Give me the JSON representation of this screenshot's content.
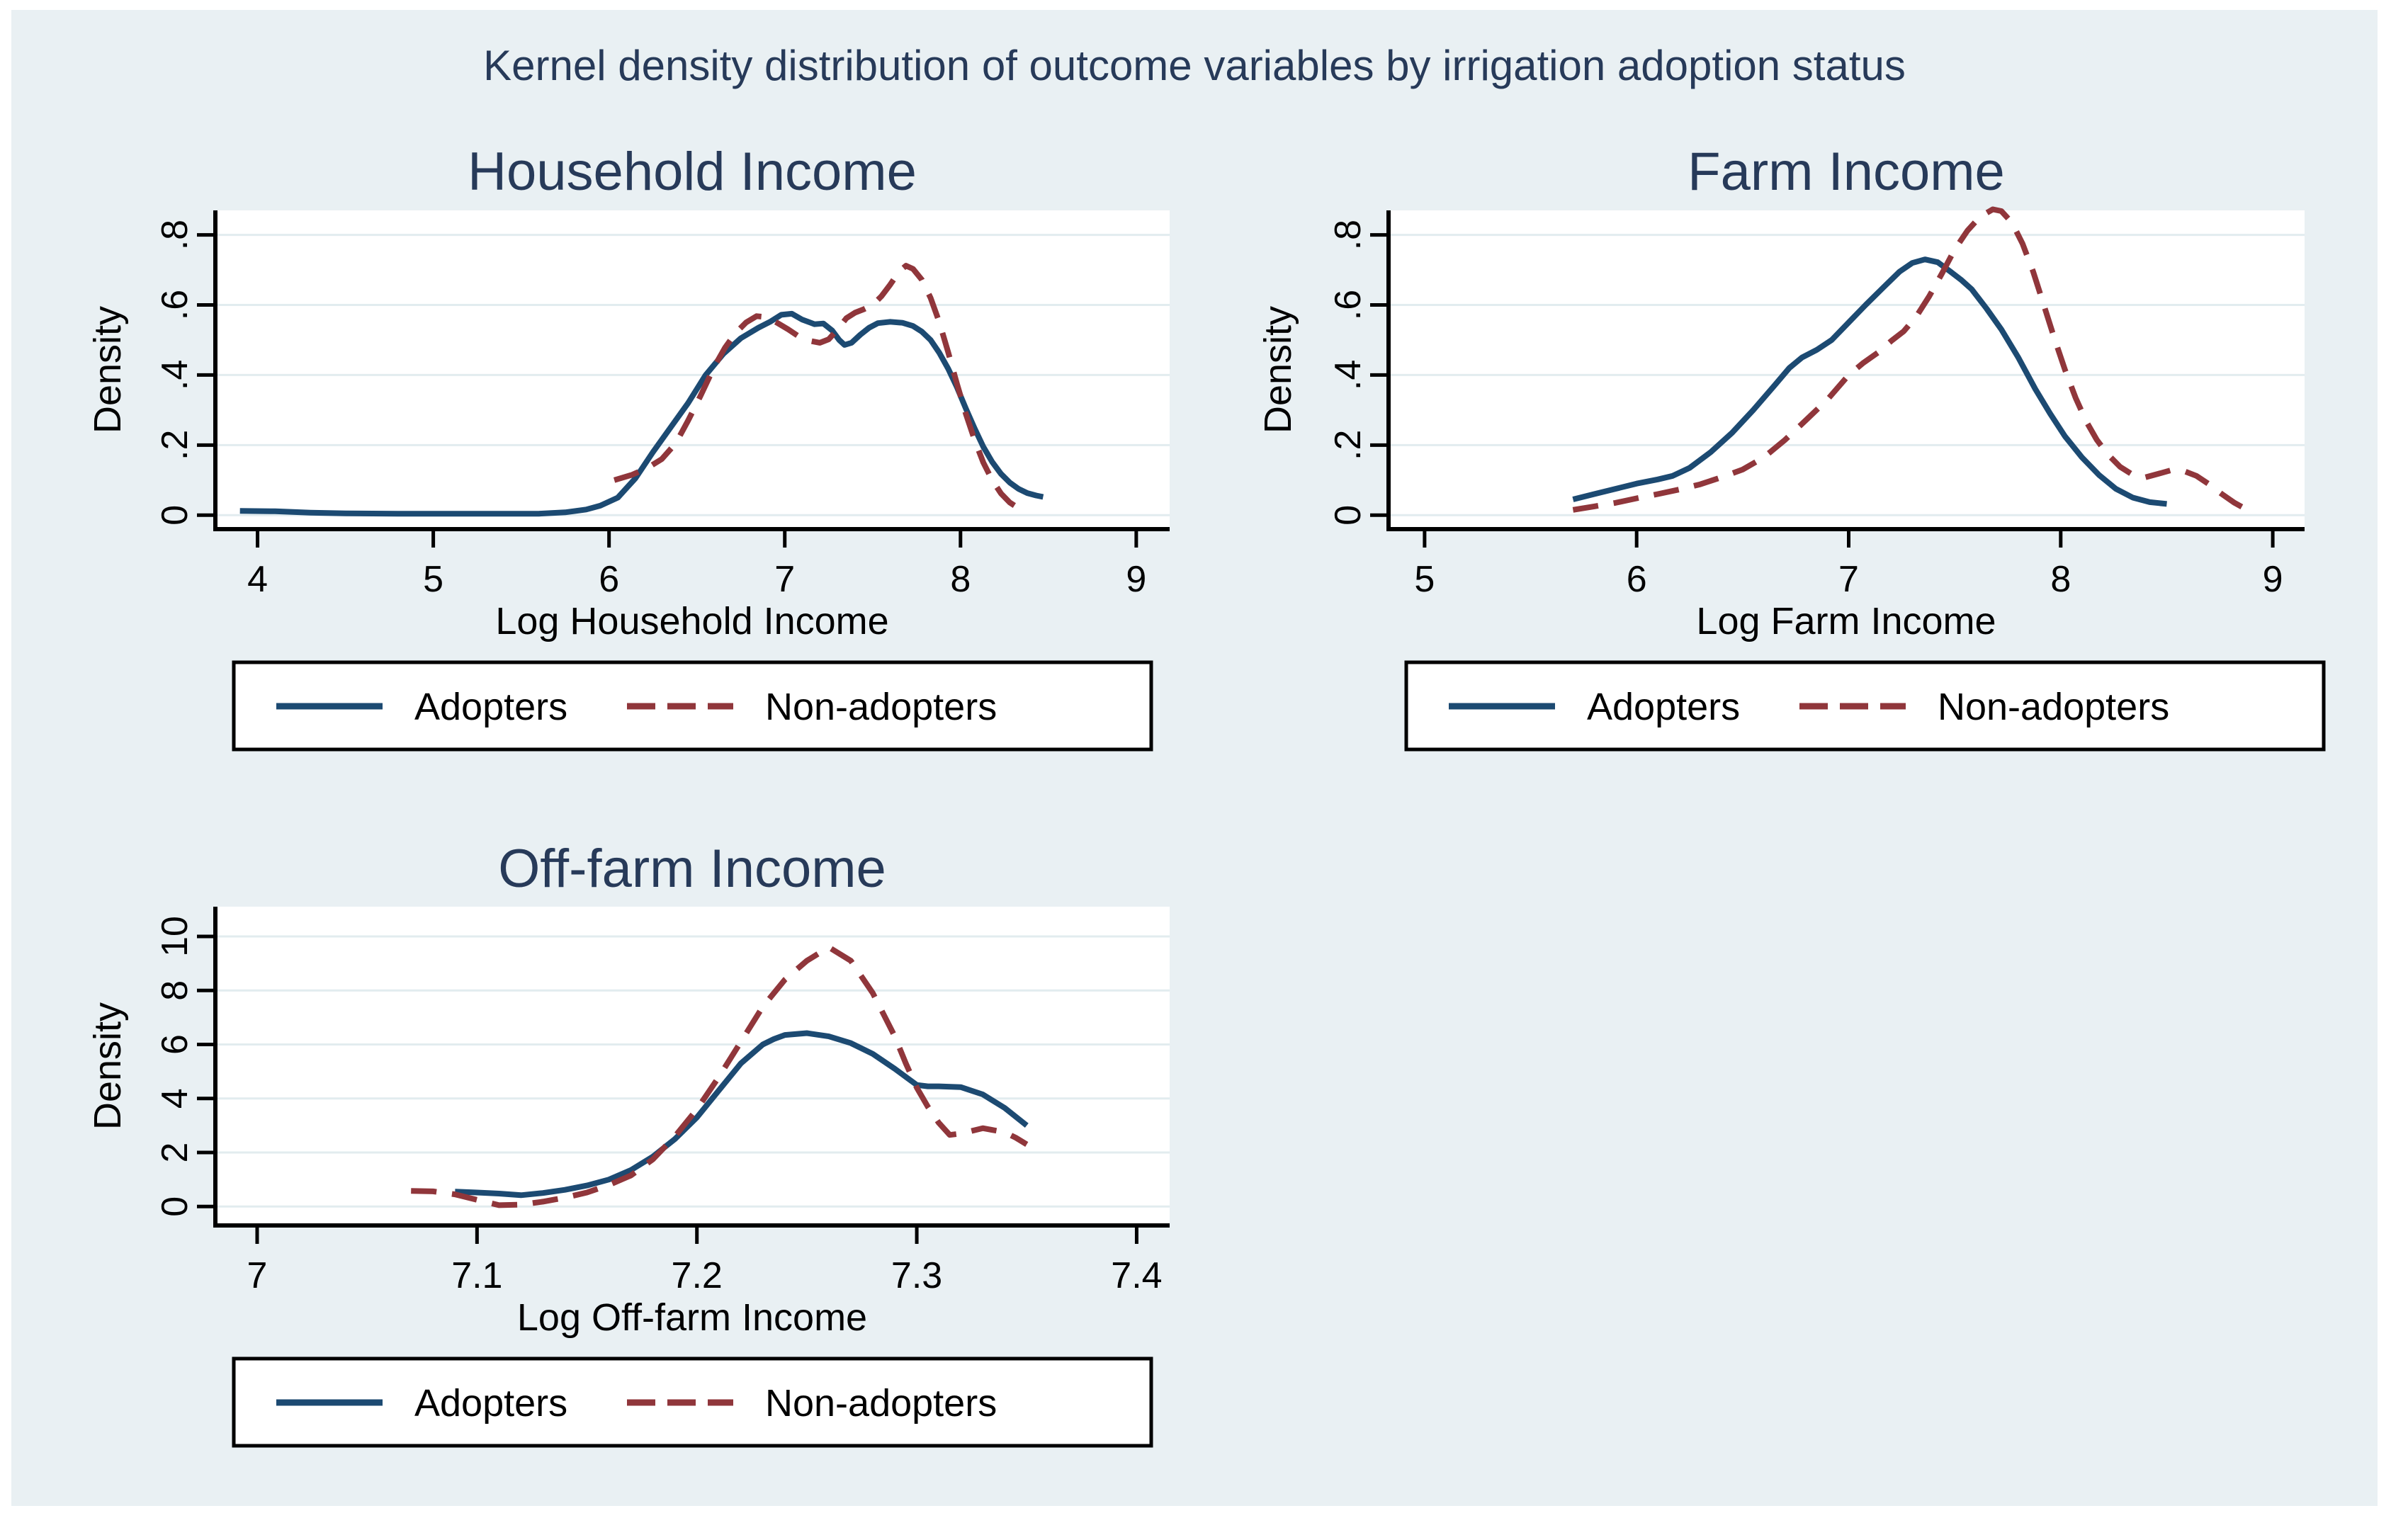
{
  "figure": {
    "title": "Kernel density distribution of outcome variables by irrigation adoption status"
  },
  "legend": {
    "adopters": "Adopters",
    "non_adopters": "Non-adopters"
  },
  "colors": {
    "adopters": "#1c4a72",
    "non_adopters": "#90363b",
    "background": "#e9f0f3",
    "plot_background": "#ffffff",
    "gridline": "#e2ecef",
    "title_text": "#273a59",
    "axis_text": "#000000"
  },
  "chart_data": [
    {
      "panel": "household-income",
      "type": "line",
      "title": "Household Income",
      "xlabel": "Log Household Income",
      "ylabel": "Density",
      "xlim": [
        3.76,
        9.19
      ],
      "ylim": [
        -0.04,
        0.87
      ],
      "xticks": [
        4,
        5,
        6,
        7,
        8,
        9
      ],
      "xtick_labels": [
        "4",
        "5",
        "6",
        "7",
        "8",
        "9"
      ],
      "yticks": [
        0,
        0.2,
        0.4,
        0.6,
        0.8
      ],
      "ytick_labels": [
        "0",
        ".2",
        ".4",
        ".6",
        ".8"
      ],
      "grid": true,
      "legend_position": "below",
      "series": [
        {
          "name": "Adopters",
          "style": "solid",
          "color": "#1c4a72",
          "points": [
            [
              3.9,
              0.012
            ],
            [
              4.1,
              0.011
            ],
            [
              4.3,
              0.007
            ],
            [
              4.5,
              0.005
            ],
            [
              4.8,
              0.004
            ],
            [
              5.1,
              0.004
            ],
            [
              5.4,
              0.004
            ],
            [
              5.6,
              0.004
            ],
            [
              5.75,
              0.008
            ],
            [
              5.87,
              0.016
            ],
            [
              5.95,
              0.027
            ],
            [
              6.05,
              0.05
            ],
            [
              6.15,
              0.105
            ],
            [
              6.25,
              0.18
            ],
            [
              6.35,
              0.25
            ],
            [
              6.45,
              0.32
            ],
            [
              6.55,
              0.4
            ],
            [
              6.65,
              0.46
            ],
            [
              6.75,
              0.505
            ],
            [
              6.85,
              0.535
            ],
            [
              6.92,
              0.553
            ],
            [
              6.98,
              0.572
            ],
            [
              7.04,
              0.575
            ],
            [
              7.1,
              0.558
            ],
            [
              7.17,
              0.545
            ],
            [
              7.22,
              0.547
            ],
            [
              7.27,
              0.527
            ],
            [
              7.31,
              0.5
            ],
            [
              7.34,
              0.486
            ],
            [
              7.38,
              0.492
            ],
            [
              7.43,
              0.515
            ],
            [
              7.48,
              0.535
            ],
            [
              7.53,
              0.548
            ],
            [
              7.6,
              0.552
            ],
            [
              7.67,
              0.549
            ],
            [
              7.73,
              0.54
            ],
            [
              7.78,
              0.524
            ],
            [
              7.83,
              0.5
            ],
            [
              7.88,
              0.463
            ],
            [
              7.93,
              0.418
            ],
            [
              7.98,
              0.365
            ],
            [
              8.03,
              0.305
            ],
            [
              8.08,
              0.248
            ],
            [
              8.13,
              0.195
            ],
            [
              8.18,
              0.152
            ],
            [
              8.23,
              0.118
            ],
            [
              8.28,
              0.093
            ],
            [
              8.33,
              0.075
            ],
            [
              8.38,
              0.063
            ],
            [
              8.43,
              0.056
            ],
            [
              8.47,
              0.052
            ]
          ]
        },
        {
          "name": "Non-adopters",
          "style": "dashed",
          "color": "#90363b",
          "points": [
            [
              6.03,
              0.1
            ],
            [
              6.13,
              0.115
            ],
            [
              6.22,
              0.135
            ],
            [
              6.3,
              0.16
            ],
            [
              6.38,
              0.205
            ],
            [
              6.45,
              0.27
            ],
            [
              6.52,
              0.34
            ],
            [
              6.6,
              0.425
            ],
            [
              6.66,
              0.478
            ],
            [
              6.72,
              0.52
            ],
            [
              6.78,
              0.55
            ],
            [
              6.84,
              0.568
            ],
            [
              6.9,
              0.565
            ],
            [
              6.96,
              0.548
            ],
            [
              7.02,
              0.53
            ],
            [
              7.08,
              0.51
            ],
            [
              7.14,
              0.498
            ],
            [
              7.2,
              0.492
            ],
            [
              7.25,
              0.502
            ],
            [
              7.3,
              0.53
            ],
            [
              7.35,
              0.562
            ],
            [
              7.4,
              0.578
            ],
            [
              7.45,
              0.588
            ],
            [
              7.5,
              0.6
            ],
            [
              7.55,
              0.625
            ],
            [
              7.6,
              0.658
            ],
            [
              7.65,
              0.695
            ],
            [
              7.69,
              0.712
            ],
            [
              7.73,
              0.703
            ],
            [
              7.78,
              0.672
            ],
            [
              7.83,
              0.62
            ],
            [
              7.88,
              0.55
            ],
            [
              7.93,
              0.465
            ],
            [
              7.98,
              0.375
            ],
            [
              8.03,
              0.29
            ],
            [
              8.08,
              0.215
            ],
            [
              8.13,
              0.15
            ],
            [
              8.18,
              0.1
            ],
            [
              8.23,
              0.062
            ],
            [
              8.28,
              0.036
            ],
            [
              8.33,
              0.02
            ],
            [
              8.38,
              0.012
            ]
          ]
        }
      ]
    },
    {
      "panel": "farm-income",
      "type": "line",
      "title": "Farm Income",
      "xlabel": "Log Farm Income",
      "ylabel": "Density",
      "xlim": [
        4.83,
        9.15
      ],
      "ylim": [
        -0.04,
        0.87
      ],
      "xticks": [
        5,
        6,
        7,
        8,
        9
      ],
      "xtick_labels": [
        "5",
        "6",
        "7",
        "8",
        "9"
      ],
      "yticks": [
        0,
        0.2,
        0.4,
        0.6,
        0.8
      ],
      "ytick_labels": [
        "0",
        ".2",
        ".4",
        ".6",
        ".8"
      ],
      "grid": true,
      "legend_position": "below",
      "series": [
        {
          "name": "Adopters",
          "style": "solid",
          "color": "#1c4a72",
          "points": [
            [
              5.7,
              0.045
            ],
            [
              5.8,
              0.06
            ],
            [
              5.9,
              0.075
            ],
            [
              6.0,
              0.09
            ],
            [
              6.1,
              0.102
            ],
            [
              6.17,
              0.112
            ],
            [
              6.25,
              0.135
            ],
            [
              6.35,
              0.18
            ],
            [
              6.45,
              0.235
            ],
            [
              6.55,
              0.3
            ],
            [
              6.65,
              0.37
            ],
            [
              6.72,
              0.42
            ],
            [
              6.78,
              0.45
            ],
            [
              6.85,
              0.472
            ],
            [
              6.92,
              0.5
            ],
            [
              7.0,
              0.55
            ],
            [
              7.08,
              0.6
            ],
            [
              7.16,
              0.648
            ],
            [
              7.24,
              0.695
            ],
            [
              7.3,
              0.72
            ],
            [
              7.36,
              0.73
            ],
            [
              7.42,
              0.722
            ],
            [
              7.48,
              0.695
            ],
            [
              7.53,
              0.672
            ],
            [
              7.58,
              0.645
            ],
            [
              7.65,
              0.59
            ],
            [
              7.72,
              0.53
            ],
            [
              7.8,
              0.45
            ],
            [
              7.88,
              0.36
            ],
            [
              7.95,
              0.29
            ],
            [
              8.02,
              0.225
            ],
            [
              8.1,
              0.165
            ],
            [
              8.18,
              0.115
            ],
            [
              8.26,
              0.075
            ],
            [
              8.34,
              0.05
            ],
            [
              8.42,
              0.037
            ],
            [
              8.5,
              0.032
            ]
          ]
        },
        {
          "name": "Non-adopters",
          "style": "dashed",
          "color": "#90363b",
          "points": [
            [
              5.7,
              0.015
            ],
            [
              5.8,
              0.025
            ],
            [
              5.9,
              0.035
            ],
            [
              6.0,
              0.048
            ],
            [
              6.1,
              0.06
            ],
            [
              6.2,
              0.073
            ],
            [
              6.3,
              0.088
            ],
            [
              6.4,
              0.108
            ],
            [
              6.5,
              0.13
            ],
            [
              6.6,
              0.165
            ],
            [
              6.7,
              0.215
            ],
            [
              6.8,
              0.272
            ],
            [
              6.9,
              0.33
            ],
            [
              7.0,
              0.4
            ],
            [
              7.07,
              0.435
            ],
            [
              7.14,
              0.465
            ],
            [
              7.2,
              0.497
            ],
            [
              7.26,
              0.525
            ],
            [
              7.32,
              0.568
            ],
            [
              7.38,
              0.625
            ],
            [
              7.44,
              0.69
            ],
            [
              7.5,
              0.758
            ],
            [
              7.56,
              0.812
            ],
            [
              7.62,
              0.852
            ],
            [
              7.68,
              0.873
            ],
            [
              7.72,
              0.868
            ],
            [
              7.77,
              0.835
            ],
            [
              7.82,
              0.775
            ],
            [
              7.87,
              0.695
            ],
            [
              7.92,
              0.6
            ],
            [
              7.97,
              0.505
            ],
            [
              8.02,
              0.415
            ],
            [
              8.07,
              0.335
            ],
            [
              8.12,
              0.268
            ],
            [
              8.17,
              0.215
            ],
            [
              8.22,
              0.175
            ],
            [
              8.28,
              0.138
            ],
            [
              8.34,
              0.115
            ],
            [
              8.4,
              0.108
            ],
            [
              8.46,
              0.118
            ],
            [
              8.52,
              0.128
            ],
            [
              8.58,
              0.126
            ],
            [
              8.64,
              0.112
            ],
            [
              8.7,
              0.088
            ],
            [
              8.76,
              0.06
            ],
            [
              8.82,
              0.035
            ],
            [
              8.88,
              0.015
            ]
          ]
        }
      ]
    },
    {
      "panel": "off-farm-income",
      "type": "line",
      "title": "Off-farm Income",
      "xlabel": "Log Off-farm Income",
      "ylabel": "Density",
      "xlim": [
        6.981,
        7.415
      ],
      "ylim": [
        -0.7,
        11.1
      ],
      "xticks": [
        7,
        7.1,
        7.2,
        7.3,
        7.4
      ],
      "xtick_labels": [
        "7",
        "7.1",
        "7.2",
        "7.3",
        "7.4"
      ],
      "yticks": [
        0,
        2,
        4,
        6,
        8,
        10
      ],
      "ytick_labels": [
        "0",
        "2",
        "4",
        "6",
        "8",
        "10"
      ],
      "grid": true,
      "legend_position": "below",
      "series": [
        {
          "name": "Adopters",
          "style": "solid",
          "color": "#1c4a72",
          "points": [
            [
              7.09,
              0.55
            ],
            [
              7.1,
              0.52
            ],
            [
              7.11,
              0.48
            ],
            [
              7.12,
              0.42
            ],
            [
              7.13,
              0.5
            ],
            [
              7.14,
              0.62
            ],
            [
              7.15,
              0.78
            ],
            [
              7.16,
              1.0
            ],
            [
              7.17,
              1.35
            ],
            [
              7.18,
              1.85
            ],
            [
              7.19,
              2.5
            ],
            [
              7.2,
              3.3
            ],
            [
              7.21,
              4.3
            ],
            [
              7.22,
              5.3
            ],
            [
              7.23,
              6.0
            ],
            [
              7.235,
              6.2
            ],
            [
              7.24,
              6.35
            ],
            [
              7.25,
              6.42
            ],
            [
              7.26,
              6.3
            ],
            [
              7.27,
              6.05
            ],
            [
              7.28,
              5.65
            ],
            [
              7.29,
              5.1
            ],
            [
              7.295,
              4.8
            ],
            [
              7.3,
              4.5
            ],
            [
              7.305,
              4.45
            ],
            [
              7.31,
              4.45
            ],
            [
              7.32,
              4.42
            ],
            [
              7.33,
              4.15
            ],
            [
              7.34,
              3.65
            ],
            [
              7.35,
              3.0
            ]
          ]
        },
        {
          "name": "Non-adopters",
          "style": "dashed",
          "color": "#90363b",
          "points": [
            [
              7.07,
              0.58
            ],
            [
              7.08,
              0.56
            ],
            [
              7.09,
              0.45
            ],
            [
              7.1,
              0.25
            ],
            [
              7.11,
              0.05
            ],
            [
              7.12,
              0.07
            ],
            [
              7.13,
              0.18
            ],
            [
              7.14,
              0.33
            ],
            [
              7.15,
              0.52
            ],
            [
              7.16,
              0.8
            ],
            [
              7.17,
              1.15
            ],
            [
              7.18,
              1.75
            ],
            [
              7.19,
              2.6
            ],
            [
              7.2,
              3.6
            ],
            [
              7.21,
              4.8
            ],
            [
              7.22,
              6.1
            ],
            [
              7.23,
              7.4
            ],
            [
              7.24,
              8.4
            ],
            [
              7.25,
              9.1
            ],
            [
              7.26,
              9.6
            ],
            [
              7.27,
              9.1
            ],
            [
              7.28,
              7.9
            ],
            [
              7.285,
              7.1
            ],
            [
              7.29,
              6.3
            ],
            [
              7.295,
              5.3
            ],
            [
              7.3,
              4.4
            ],
            [
              7.305,
              3.7
            ],
            [
              7.31,
              3.1
            ],
            [
              7.315,
              2.65
            ],
            [
              7.32,
              2.7
            ],
            [
              7.33,
              2.9
            ],
            [
              7.34,
              2.75
            ],
            [
              7.345,
              2.55
            ],
            [
              7.35,
              2.3
            ]
          ]
        }
      ]
    }
  ]
}
